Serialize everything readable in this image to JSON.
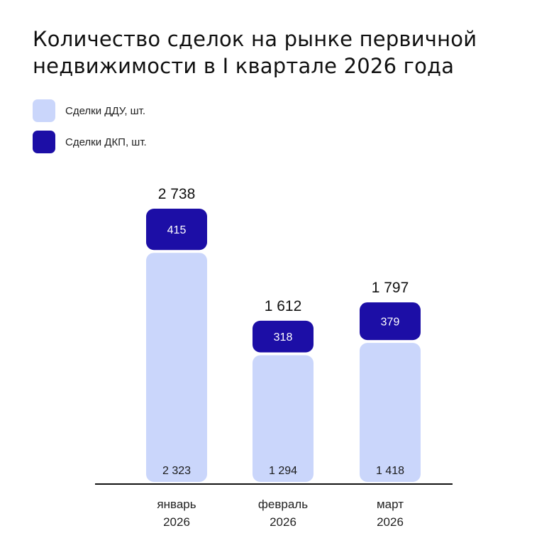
{
  "colors": {
    "ddu": "#cad6fb",
    "dkp": "#1c0ea6",
    "axis": "#111111",
    "text": "#111111"
  },
  "chart_data": {
    "type": "bar",
    "stacked": true,
    "title": "Количество сделок на рынке первичной недвижимости в I квартале 2026 года",
    "categories": [
      [
        "январь",
        "2026"
      ],
      [
        "февраль",
        "2026"
      ],
      [
        "март",
        "2026"
      ]
    ],
    "series": [
      {
        "name": "Сделки ДДУ, шт.",
        "color": "#cad6fb",
        "values": [
          2323,
          1294,
          1418
        ],
        "labels": [
          "2 323",
          "1 294",
          "1 418"
        ]
      },
      {
        "name": "Сделки ДКП, шт.",
        "color": "#1c0ea6",
        "values": [
          415,
          318,
          379
        ],
        "labels": [
          "415",
          "318",
          "379"
        ]
      }
    ],
    "totals": [
      2738,
      1612,
      1797
    ],
    "total_labels": [
      "2 738",
      "1 612",
      "1 797"
    ],
    "legend_position": "top-left",
    "grid": false
  }
}
